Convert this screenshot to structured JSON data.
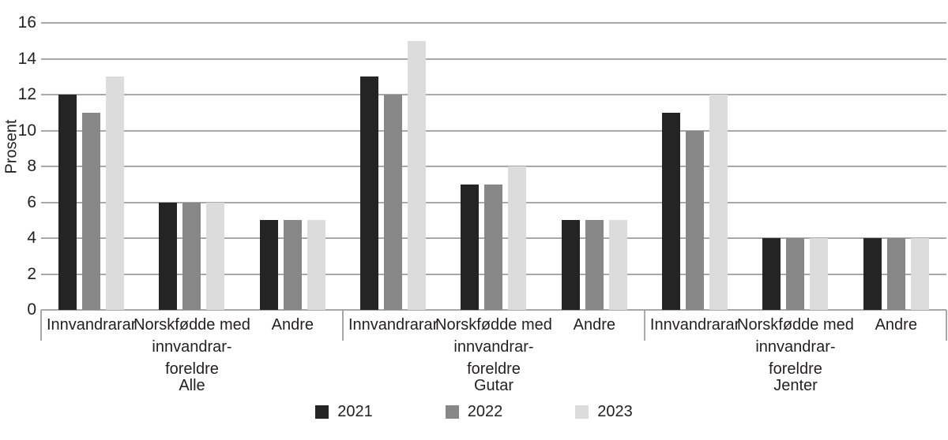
{
  "chart_data": {
    "type": "bar",
    "title": "",
    "ylabel": "Prosent",
    "xlabel": "",
    "ylim": [
      0,
      16
    ],
    "ytick_step": 2,
    "grid": true,
    "legend_position": "bottom",
    "series": [
      {
        "name": "2021",
        "color": "#242424"
      },
      {
        "name": "2022",
        "color": "#878787"
      },
      {
        "name": "2023",
        "color": "#dcdcdc"
      }
    ],
    "groups": [
      {
        "label": "Alle",
        "categories": [
          "Innvandrarar",
          "Norskfødde med innvandrar-foreldre",
          "Andre"
        ],
        "values": {
          "2021": [
            12,
            6,
            5
          ],
          "2022": [
            11,
            6,
            5
          ],
          "2023": [
            13,
            6,
            5
          ]
        }
      },
      {
        "label": "Gutar",
        "categories": [
          "Innvandrarar",
          "Norskfødde med innvandrar-foreldre",
          "Andre"
        ],
        "values": {
          "2021": [
            13,
            7,
            5
          ],
          "2022": [
            12,
            7,
            5
          ],
          "2023": [
            15,
            8,
            5
          ]
        }
      },
      {
        "label": "Jenter",
        "categories": [
          "Innvandrarar",
          "Norskfødde med innvandrar-foreldre",
          "Andre"
        ],
        "values": {
          "2021": [
            11,
            4,
            4
          ],
          "2022": [
            10,
            4,
            4
          ],
          "2023": [
            12,
            4,
            4
          ]
        }
      }
    ],
    "colors": {
      "gridline": "#a8a8a8",
      "text": "#231f20",
      "background": "#ffffff"
    }
  }
}
